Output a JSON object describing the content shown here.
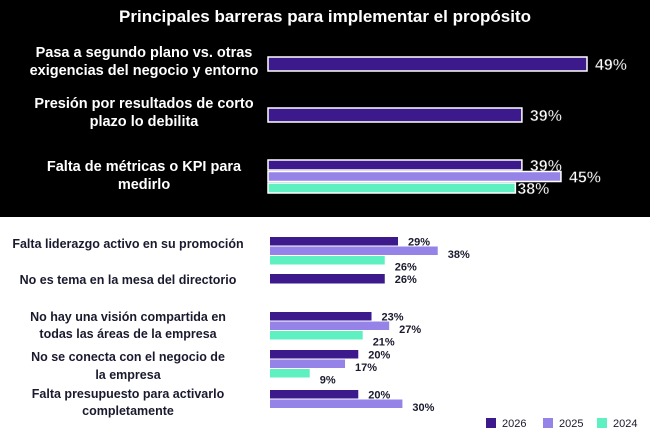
{
  "chart_data": {
    "type": "bar",
    "orientation": "horizontal",
    "title": "Principales barreras para implementar el propósito",
    "categories": [
      [
        "Pasa a segundo plano vs. otras",
        "exigencias del negocio y entorno"
      ],
      [
        "Presión por resultados de corto",
        "plazo lo debilita"
      ],
      [
        "Falta de métricas o KPI para",
        "medirlo"
      ],
      [
        "Falta liderazgo activo en su promoción"
      ],
      [
        "No es tema en la mesa del directorio"
      ],
      [
        "No hay una visión compartida en",
        "todas las áreas de la empresa"
      ],
      [
        "No se conecta con el negocio de",
        "la empresa"
      ],
      [
        "Falta presupuesto para activarlo",
        "completamente"
      ]
    ],
    "series": [
      {
        "name": "2026",
        "color": "#3d1a8c",
        "values": [
          49,
          39,
          39,
          29,
          26,
          23,
          20,
          20
        ]
      },
      {
        "name": "2025",
        "color": "#9583e8",
        "values": [
          null,
          null,
          45,
          38,
          null,
          27,
          17,
          30
        ]
      },
      {
        "name": "2024",
        "color": "#5ff0c2",
        "values": [
          null,
          null,
          38,
          26,
          null,
          21,
          9,
          null
        ]
      }
    ],
    "value_suffix": "%",
    "legend_position": "bottom-right",
    "grid": false,
    "xlim": [
      0,
      50
    ]
  }
}
